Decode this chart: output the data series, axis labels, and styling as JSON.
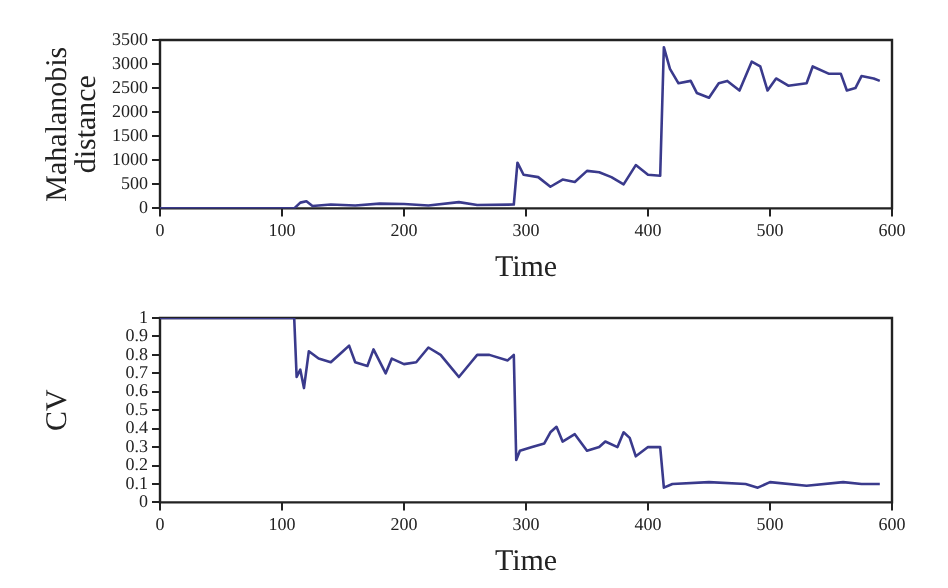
{
  "chart_data": [
    {
      "type": "line",
      "xlabel": "Time",
      "ylabel": "Mahalanobis distance",
      "xlim": [
        0,
        600
      ],
      "xticks": [
        0,
        100,
        200,
        300,
        400,
        500,
        600
      ],
      "ylim": [
        0,
        3500
      ],
      "yticks": [
        0,
        500,
        1000,
        1500,
        2000,
        2500,
        3000,
        3500
      ],
      "grid": false,
      "legend": false,
      "marker": "none",
      "line_style": "solid",
      "series": [
        {
          "color": "#3a3a8c",
          "x": [
            0,
            110,
            115,
            120,
            125,
            140,
            160,
            180,
            200,
            220,
            245,
            260,
            290,
            293,
            298,
            310,
            320,
            330,
            340,
            350,
            360,
            370,
            380,
            390,
            400,
            410,
            413,
            418,
            425,
            435,
            440,
            450,
            458,
            465,
            475,
            485,
            492,
            498,
            505,
            515,
            530,
            535,
            548,
            558,
            563,
            570,
            575,
            585,
            590
          ],
          "values": [
            0,
            0,
            120,
            150,
            50,
            80,
            60,
            100,
            90,
            60,
            130,
            70,
            80,
            950,
            700,
            650,
            450,
            600,
            550,
            780,
            750,
            650,
            500,
            900,
            700,
            680,
            3350,
            2900,
            2600,
            2650,
            2400,
            2300,
            2600,
            2650,
            2450,
            3050,
            2950,
            2450,
            2700,
            2550,
            2600,
            2950,
            2800,
            2800,
            2450,
            2500,
            2750,
            2700,
            2650
          ]
        }
      ]
    },
    {
      "type": "line",
      "xlabel": "Time",
      "ylabel": "CV",
      "xlim": [
        0,
        600
      ],
      "xticks": [
        0,
        100,
        200,
        300,
        400,
        500,
        600
      ],
      "ylim": [
        0,
        1
      ],
      "yticks": [
        0,
        0.1,
        0.2,
        0.3,
        0.4,
        0.5,
        0.6,
        0.7,
        0.8,
        0.9,
        1
      ],
      "grid": false,
      "legend": false,
      "marker": "none",
      "line_style": "solid",
      "series": [
        {
          "color": "#3a3a8c",
          "x": [
            0,
            110,
            112,
            115,
            118,
            122,
            130,
            140,
            150,
            155,
            160,
            170,
            175,
            185,
            190,
            200,
            210,
            220,
            230,
            240,
            245,
            255,
            260,
            270,
            285,
            290,
            292,
            295,
            305,
            315,
            320,
            325,
            330,
            340,
            350,
            360,
            365,
            375,
            380,
            385,
            390,
            400,
            410,
            413,
            420,
            450,
            480,
            490,
            500,
            530,
            560,
            575,
            590
          ],
          "values": [
            1,
            1,
            0.68,
            0.72,
            0.62,
            0.82,
            0.78,
            0.76,
            0.82,
            0.85,
            0.76,
            0.74,
            0.83,
            0.7,
            0.78,
            0.75,
            0.76,
            0.84,
            0.8,
            0.72,
            0.68,
            0.76,
            0.8,
            0.8,
            0.77,
            0.8,
            0.23,
            0.28,
            0.3,
            0.32,
            0.38,
            0.41,
            0.33,
            0.37,
            0.28,
            0.3,
            0.33,
            0.3,
            0.38,
            0.35,
            0.25,
            0.3,
            0.3,
            0.08,
            0.1,
            0.11,
            0.1,
            0.08,
            0.11,
            0.09,
            0.11,
            0.1,
            0.1
          ]
        }
      ]
    }
  ]
}
